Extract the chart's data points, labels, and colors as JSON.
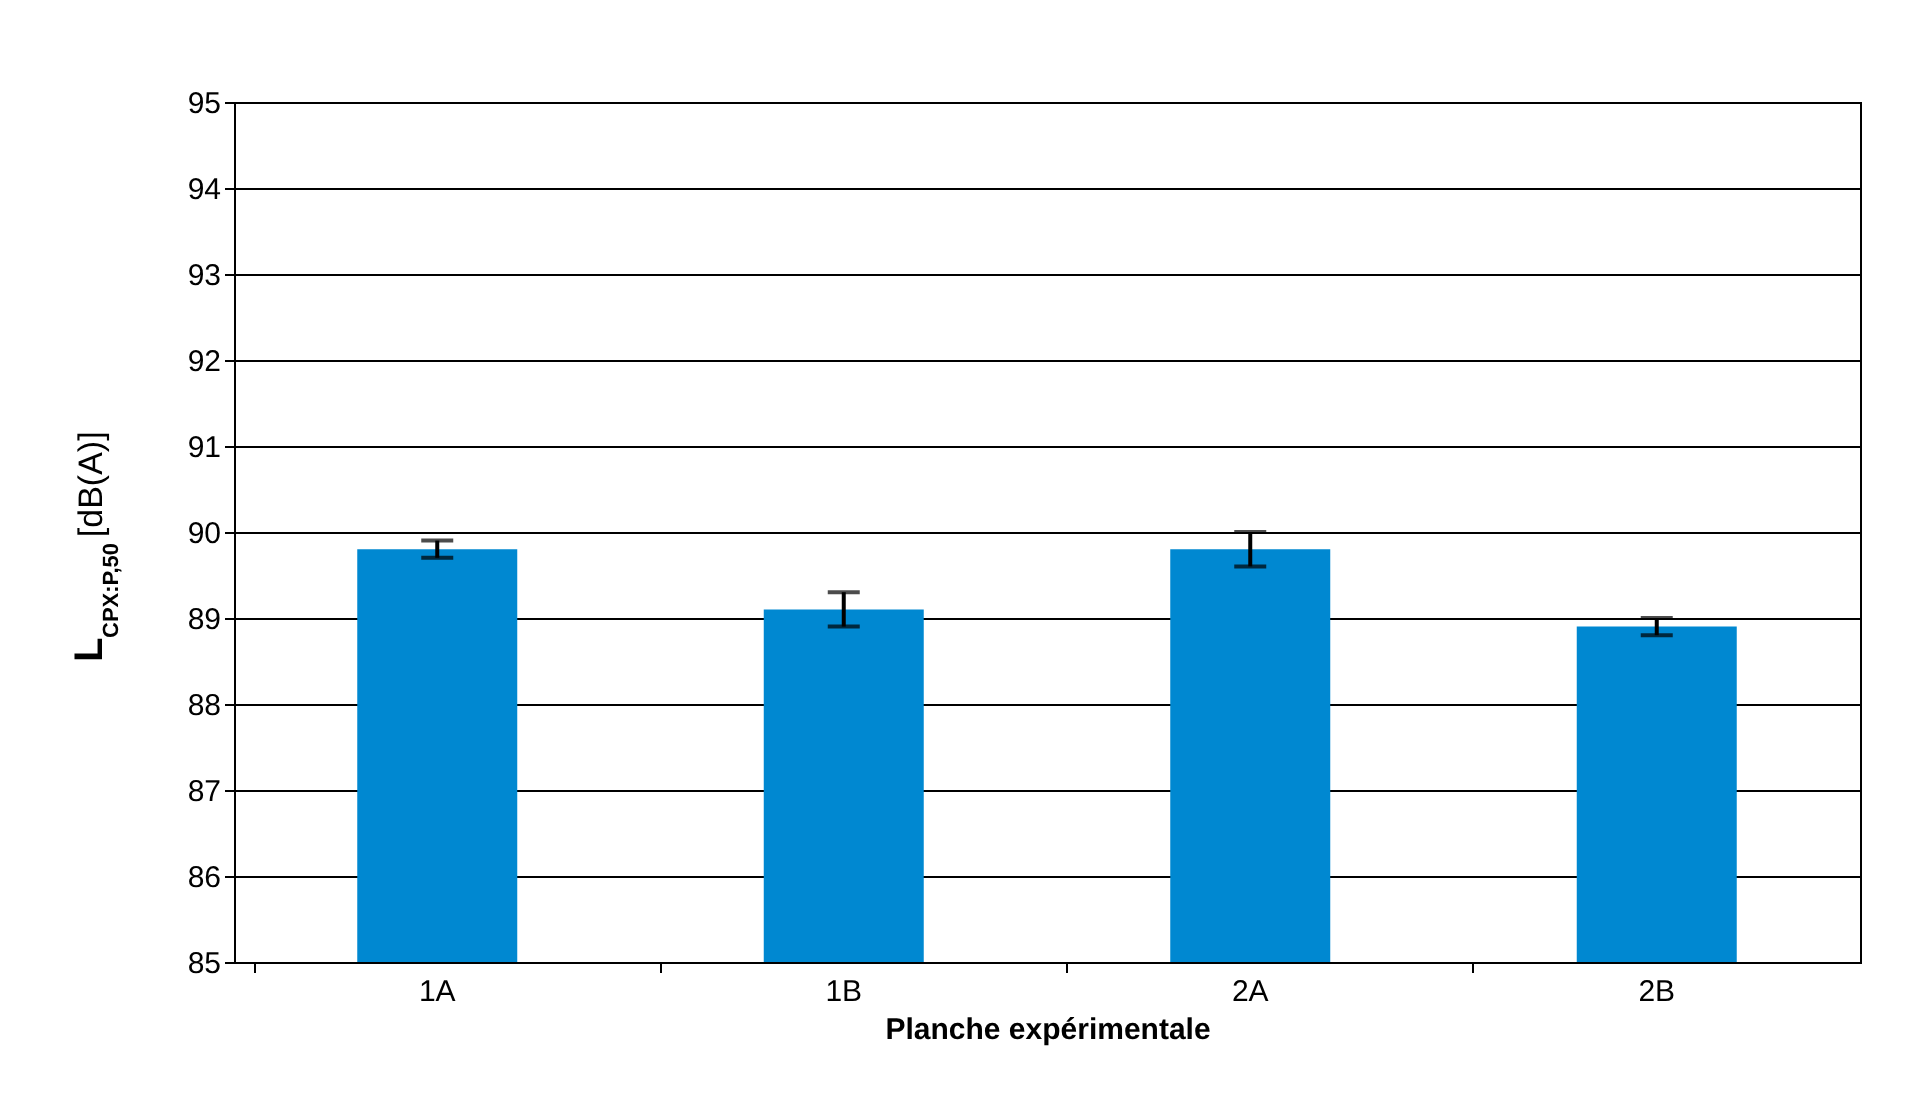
{
  "chart_data": {
    "type": "bar",
    "xlabel": "Planche expérimentale",
    "ylabel": "L$_{CPX:P,50}$ [dB(A)]",
    "categories": [
      "1A",
      "1B",
      "2A",
      "2B"
    ],
    "values": [
      89.8,
      89.1,
      89.8,
      88.9
    ],
    "errors": [
      0.1,
      0.2,
      0.2,
      0.1
    ],
    "color": "#0088d1",
    "ylim": [
      85,
      95
    ],
    "yticks": [
      85,
      86,
      87,
      88,
      89,
      90,
      91,
      92,
      93,
      94,
      95
    ],
    "grid": "y"
  }
}
